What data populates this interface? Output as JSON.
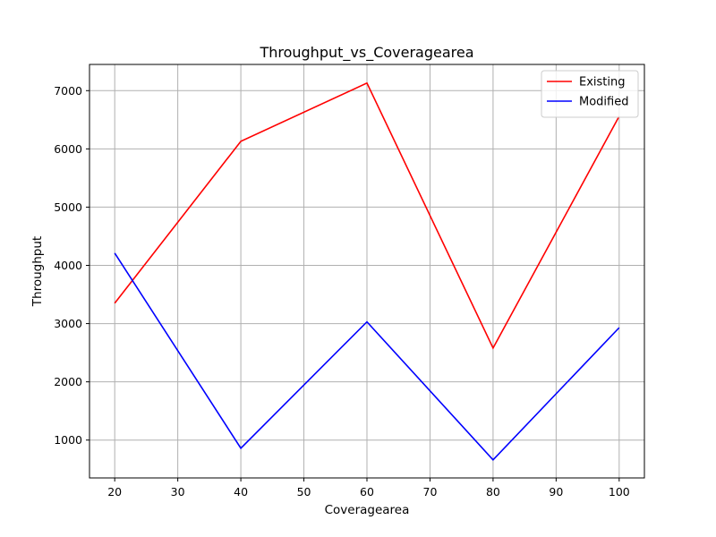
{
  "chart_data": {
    "type": "line",
    "title": "Throughput_vs_Coveragearea",
    "xlabel": "Coveragearea",
    "ylabel": "Throughput",
    "x": [
      20,
      40,
      60,
      80,
      100
    ],
    "xlim": [
      16,
      104
    ],
    "ylim": [
      350,
      7450
    ],
    "xticks": [
      20,
      30,
      40,
      50,
      60,
      70,
      80,
      90,
      100
    ],
    "yticks": [
      1000,
      2000,
      3000,
      4000,
      5000,
      6000,
      7000
    ],
    "grid": true,
    "legend_position": "top-right",
    "series": [
      {
        "name": "Existing",
        "color": "#ff0000",
        "values": [
          3350,
          6130,
          7130,
          2580,
          6560
        ]
      },
      {
        "name": "Modified",
        "color": "#0000ff",
        "values": [
          4210,
          860,
          3030,
          660,
          2930
        ]
      }
    ]
  }
}
